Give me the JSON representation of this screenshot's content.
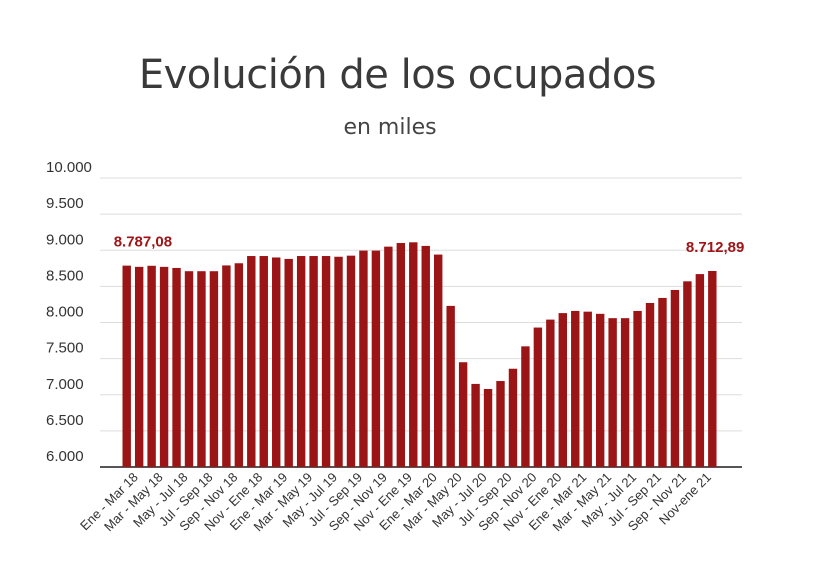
{
  "colors": {
    "bar": "#9b1416",
    "label": "#a01418",
    "grid": "#dddddd",
    "axis": "#555555"
  },
  "chart_data": {
    "type": "bar",
    "title": "Evolución de los ocupados",
    "subtitle": "en miles",
    "ylim": [
      6000,
      10000
    ],
    "yticks": [
      {
        "value": 6000,
        "label": "6.000"
      },
      {
        "value": 6500,
        "label": "6.500"
      },
      {
        "value": 7000,
        "label": "7.000"
      },
      {
        "value": 7500,
        "label": "7.500"
      },
      {
        "value": 8000,
        "label": "8.000"
      },
      {
        "value": 8500,
        "label": "8.500"
      },
      {
        "value": 9000,
        "label": "9.000"
      },
      {
        "value": 9500,
        "label": "9.500"
      },
      {
        "value": 10000,
        "label": "10.000"
      }
    ],
    "grid": true,
    "category_labels": [
      "Ene - Mar 18",
      "Mar - May 18",
      "May - Jul 18",
      "Jul - Sep 18",
      "Sep - Nov 18",
      "Nov - Ene 18",
      "Ene - Mar 19",
      "Mar - May 19",
      "May - Jul 19",
      "Jul - Sep 19",
      "Sep - Nov 19",
      "Nov - Ene 19",
      "Ene - Mar 20",
      "Mar - May 20",
      "May - Jul 20",
      "Jul - Sep 20",
      "Sep - Nov 20",
      "Nov - Ene 20",
      "Ene - Mar 21",
      "Mar - May 21",
      "May - Jul 21",
      "Jul - Sep 21",
      "Sep - Nov 21",
      "Nov-ene 21"
    ],
    "values": [
      8787.08,
      8770,
      8785,
      8770,
      8755,
      8710,
      8710,
      8710,
      8790,
      8820,
      8920,
      8920,
      8900,
      8880,
      8920,
      8920,
      8920,
      8910,
      8925,
      8995,
      8995,
      9050,
      9100,
      9110,
      9060,
      8940,
      8230,
      7450,
      7150,
      7080,
      7190,
      7360,
      7670,
      7930,
      8040,
      8130,
      8160,
      8150,
      8120,
      8060,
      8060,
      8160,
      8270,
      8340,
      8450,
      8570,
      8670,
      8712.89
    ],
    "data_labels": [
      {
        "index": 0,
        "text": "8.787,08"
      },
      {
        "index": 47,
        "text": "8.712,89"
      }
    ]
  }
}
